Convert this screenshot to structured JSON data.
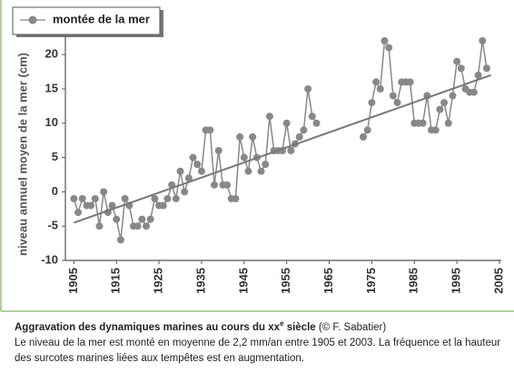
{
  "chart_data": {
    "type": "line",
    "y_label": "niveau annuel moyen de la mer (cm)",
    "x": [
      1905,
      1906,
      1907,
      1908,
      1909,
      1910,
      1911,
      1912,
      1913,
      1914,
      1915,
      1916,
      1917,
      1918,
      1919,
      1920,
      1921,
      1922,
      1923,
      1924,
      1925,
      1926,
      1927,
      1928,
      1929,
      1930,
      1931,
      1932,
      1933,
      1934,
      1935,
      1936,
      1937,
      1938,
      1939,
      1940,
      1941,
      1942,
      1943,
      1944,
      1945,
      1946,
      1947,
      1948,
      1949,
      1950,
      1951,
      1952,
      1953,
      1954,
      1955,
      1956,
      1957,
      1958,
      1959,
      1960,
      1961,
      1962,
      1963,
      1964,
      1965,
      1966,
      1967,
      1968,
      1969,
      1970,
      1971,
      1972,
      1973,
      1974,
      1975,
      1976,
      1977,
      1978,
      1979,
      1980,
      1981,
      1982,
      1983,
      1984,
      1985,
      1986,
      1987,
      1988,
      1989,
      1990,
      1991,
      1992,
      1993,
      1994,
      1995,
      1996,
      1997,
      1998,
      1999,
      2000,
      2001,
      2002
    ],
    "series": [
      {
        "name": "montée de la mer",
        "color": "#888888",
        "values": [
          -1,
          -3,
          -1,
          -2,
          -2,
          -1,
          -5,
          0,
          -3,
          -2,
          -4,
          -7,
          -1,
          -2,
          -5,
          -5,
          -4,
          -5,
          -4,
          -1,
          -2,
          -2,
          -1,
          1,
          -1,
          3,
          0,
          2,
          5,
          4,
          3,
          9,
          9,
          1,
          6,
          1,
          1,
          -1,
          -1,
          8,
          5,
          3,
          8,
          5,
          3,
          4,
          11,
          6,
          6,
          6,
          10,
          6,
          7,
          8,
          9,
          15,
          11,
          10,
          null,
          null,
          null,
          null,
          null,
          null,
          null,
          null,
          null,
          null,
          8,
          9,
          13,
          16,
          15,
          22,
          21,
          14,
          13,
          16,
          16,
          16,
          10,
          10,
          10,
          14,
          9,
          9,
          12,
          13,
          10,
          14,
          19,
          18,
          15,
          14.5,
          14.5,
          17,
          22,
          18
        ]
      }
    ],
    "trend_line": {
      "color": "#777777",
      "x": [
        1905,
        2003
      ],
      "values": [
        -4.5,
        17
      ]
    },
    "xlim": [
      1903,
      2005
    ],
    "xticks": [
      1905,
      1915,
      1925,
      1935,
      1945,
      1955,
      1965,
      1975,
      1985,
      1995,
      2005
    ],
    "ylim": [
      -10,
      22
    ],
    "yticks": [
      -10,
      -5,
      0,
      5,
      10,
      15,
      20
    ]
  },
  "caption": {
    "title": "Aggravation des dynamiques marines au cours du xx",
    "title_sup": "e",
    "title_end": " siècle",
    "credit": "(© F. Sabatier)",
    "text": "Le niveau de la mer est monté en moyenne de 2,2 mm/an entre 1905 et 2003. La fréquence et la hauteur des surcotes marines liées aux tempêtes est en augmentation."
  }
}
